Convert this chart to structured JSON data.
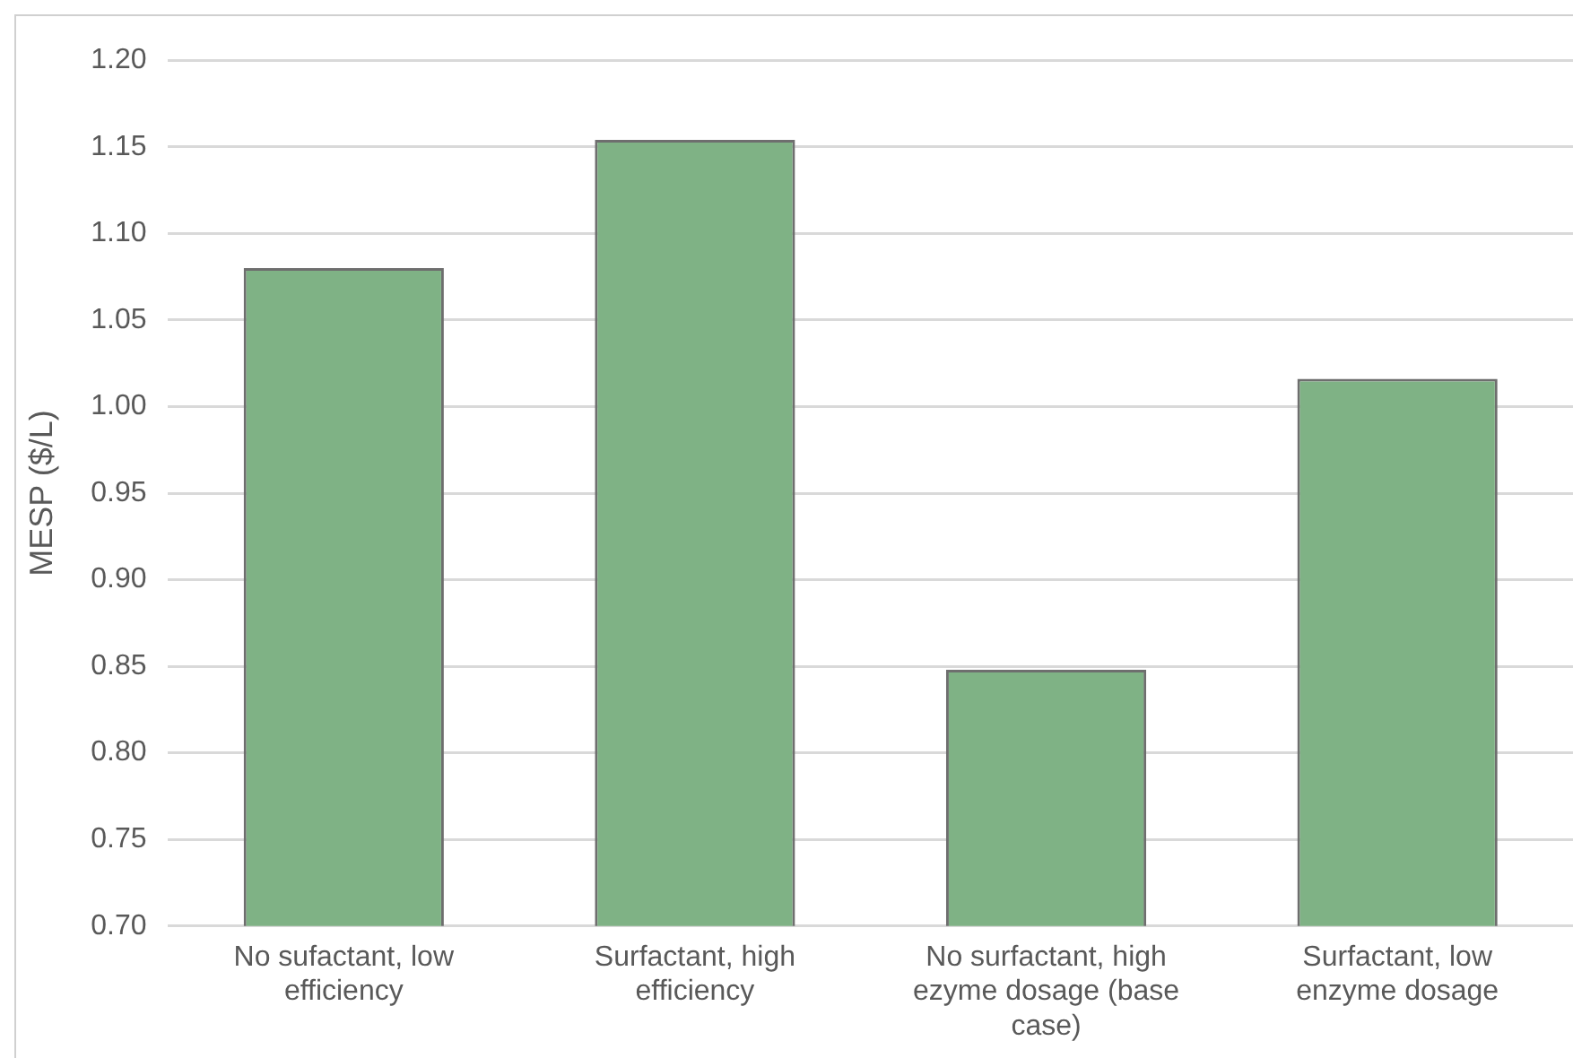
{
  "chart_data": {
    "type": "bar",
    "ylabel": "MESP ($/L)",
    "categories": [
      "No sufactant, low efficiency",
      "Surfactant, high efficiency",
      "No surfactant, high ezyme dosage (base case)",
      "Surfactant, low enzyme dosage"
    ],
    "values": [
      1.08,
      1.154,
      0.848,
      1.016
    ],
    "color": "#7fb285",
    "ylim": [
      0.7,
      1.2
    ],
    "yticks": [
      {
        "value": 0.7,
        "label": "0.70"
      },
      {
        "value": 0.75,
        "label": "0.75"
      },
      {
        "value": 0.8,
        "label": "0.80"
      },
      {
        "value": 0.85,
        "label": "0.85"
      },
      {
        "value": 0.9,
        "label": "0.90"
      },
      {
        "value": 0.95,
        "label": "0.95"
      },
      {
        "value": 1.0,
        "label": "1.00"
      },
      {
        "value": 1.05,
        "label": "1.05"
      },
      {
        "value": 1.1,
        "label": "1.10"
      },
      {
        "value": 1.15,
        "label": "1.15"
      },
      {
        "value": 1.2,
        "label": "1.20"
      }
    ],
    "grid": "y",
    "legend": false
  }
}
